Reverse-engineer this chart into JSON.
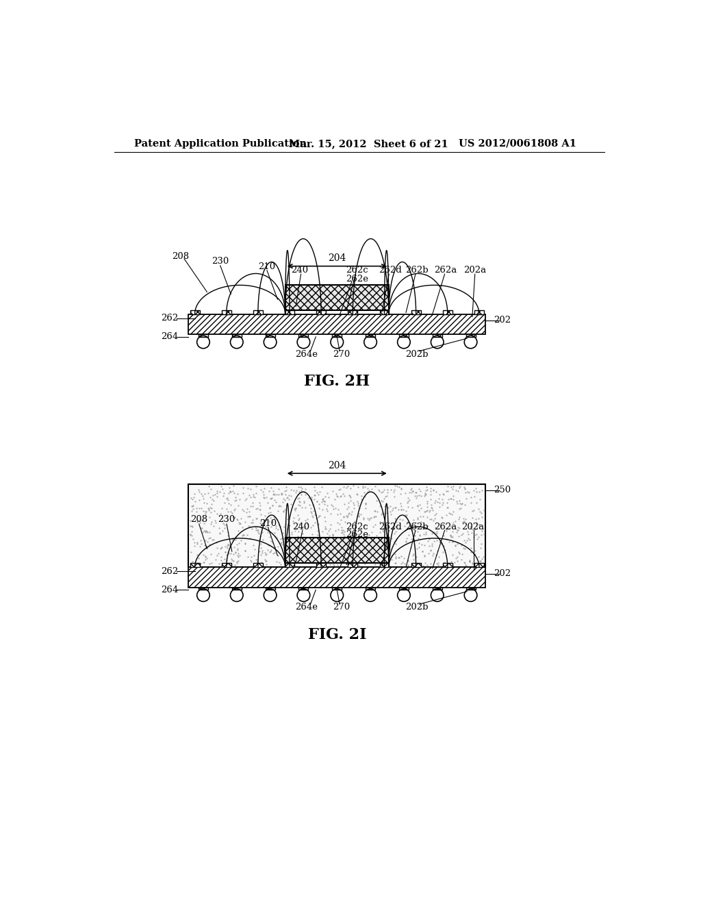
{
  "bg_color": "#ffffff",
  "header_left": "Patent Application Publication",
  "header_mid": "Mar. 15, 2012  Sheet 6 of 21",
  "header_right": "US 2012/0061808 A1",
  "fig1_label": "FIG. 2H",
  "fig2_label": "FIG. 2I"
}
